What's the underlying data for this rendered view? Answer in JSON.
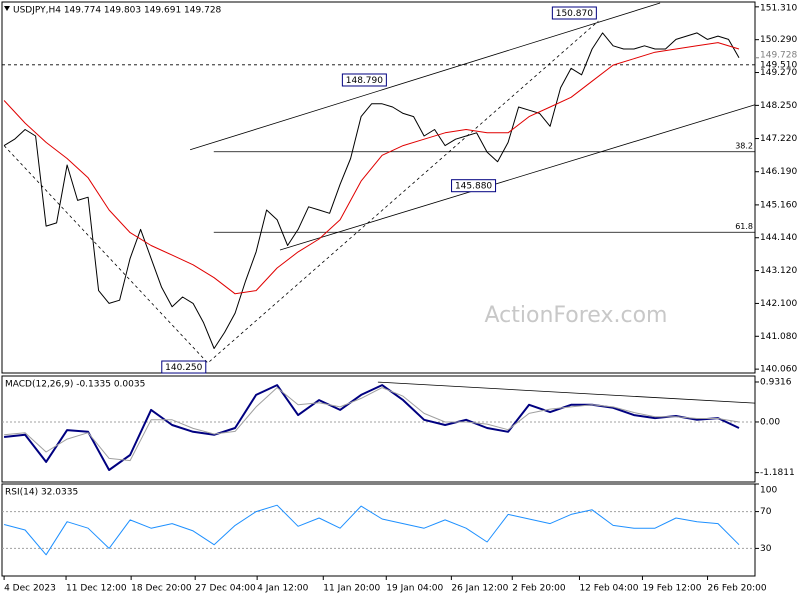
{
  "chart_data": [
    {
      "type": "line",
      "title": "USDJPY,H4  149.774 149.803 149.691 149.728",
      "watermark": "ActionForex.com",
      "xlim": [
        -1,
        357.6
      ],
      "ylim": [
        139.94,
        151.46
      ],
      "yticks": [
        {
          "value": 151.31,
          "label": "151.310"
        },
        {
          "value": 150.29,
          "label": "150.290"
        },
        {
          "value": 149.27,
          "label": "149.270"
        },
        {
          "value": 148.25,
          "label": "148.250"
        },
        {
          "value": 147.22,
          "label": "147.220"
        },
        {
          "value": 146.19,
          "label": "146.190"
        },
        {
          "value": 145.16,
          "label": "145.160"
        },
        {
          "value": 144.14,
          "label": "144.140"
        },
        {
          "value": 143.12,
          "label": "143.120"
        },
        {
          "value": 142.1,
          "label": "142.100"
        },
        {
          "value": 141.08,
          "label": "141.080"
        },
        {
          "value": 140.06,
          "label": "140.060"
        }
      ],
      "series": [
        {
          "color": "#000000",
          "width": 1,
          "x": [
            0,
            5,
            10,
            15,
            20,
            25,
            30,
            35,
            40,
            45,
            50,
            55,
            60,
            65,
            70,
            75,
            80,
            85,
            90,
            95,
            100,
            105,
            110,
            115,
            120,
            125,
            130,
            135,
            140,
            145,
            150,
            155,
            160,
            165,
            170,
            175,
            180,
            185,
            190,
            195,
            200,
            205,
            210,
            215,
            220,
            225,
            230,
            235,
            240,
            245,
            250,
            255,
            260,
            265,
            270,
            275,
            280,
            285,
            290,
            295,
            300,
            305,
            310,
            315,
            320,
            325,
            330,
            335,
            340,
            345,
            350
          ],
          "values": [
            147.0,
            147.2,
            147.5,
            147.3,
            144.5,
            144.6,
            146.4,
            145.3,
            145.4,
            142.5,
            142.1,
            142.2,
            143.5,
            144.4,
            143.5,
            142.6,
            142.0,
            142.3,
            142.1,
            141.5,
            140.7,
            141.2,
            141.8,
            142.8,
            143.7,
            145.0,
            144.7,
            143.9,
            144.4,
            145.1,
            145.0,
            144.9,
            145.8,
            146.6,
            147.9,
            148.3,
            148.3,
            148.2,
            148.0,
            147.9,
            147.3,
            147.5,
            147.0,
            147.2,
            147.3,
            147.4,
            146.8,
            146.5,
            147.1,
            148.2,
            148.1,
            148.0,
            147.6,
            148.8,
            149.4,
            149.2,
            150.0,
            150.5,
            150.1,
            150.0,
            150.0,
            150.1,
            150.0,
            150.0,
            150.3,
            150.4,
            150.5,
            150.3,
            150.4,
            150.3,
            149.73
          ]
        },
        {
          "color": "#e00000",
          "width": 1,
          "x": [
            0,
            10,
            20,
            30,
            40,
            50,
            60,
            70,
            80,
            90,
            100,
            110,
            120,
            130,
            140,
            150,
            160,
            170,
            180,
            190,
            200,
            210,
            220,
            230,
            240,
            250,
            260,
            270,
            280,
            290,
            300,
            310,
            320,
            330,
            340,
            350
          ],
          "values": [
            148.4,
            147.7,
            147.1,
            146.6,
            146.0,
            145.0,
            144.3,
            143.9,
            143.6,
            143.3,
            142.9,
            142.4,
            142.5,
            143.2,
            143.7,
            144.1,
            144.7,
            145.9,
            146.7,
            147.0,
            147.2,
            147.4,
            147.5,
            147.4,
            147.4,
            147.9,
            148.2,
            148.5,
            149.0,
            149.5,
            149.7,
            149.9,
            150.0,
            150.1,
            150.2,
            150.0
          ]
        }
      ],
      "trendlines": [
        {
          "dashed": false,
          "x": [
            88.6,
            312.4
          ],
          "values": [
            146.87,
            151.43
          ]
        },
        {
          "dashed": false,
          "x": [
            131.4,
            357.6
          ],
          "values": [
            143.76,
            148.27
          ]
        },
        {
          "dashed": true,
          "x": [
            0,
            97,
            283
          ],
          "values": [
            147.0,
            140.25,
            150.87
          ]
        }
      ],
      "fib_levels": [
        {
          "label": "38.2",
          "value": 146.81
        },
        {
          "label": "61.8",
          "value": 144.31
        }
      ],
      "annotations": [
        {
          "x": 97,
          "value": 140.25,
          "label": "140.250",
          "low": true
        },
        {
          "x": 183,
          "value": 148.79,
          "label": "148.790",
          "low": false
        },
        {
          "x": 283,
          "value": 150.87,
          "label": "150.870",
          "low": false
        },
        {
          "x": 235,
          "value": 145.88,
          "label": "145.880",
          "low": true
        }
      ],
      "price_line": {
        "value": 149.51,
        "label": "149.510"
      },
      "last_price": {
        "value": 149.728,
        "label": "149.728"
      }
    },
    {
      "type": "line",
      "title": "MACD(12,26,9) -0.1335 0.0035",
      "xlim": [
        -1,
        357.6
      ],
      "ylim": [
        -1.399,
        1.071
      ],
      "yticks": [
        0.9316,
        {
          "value": 0,
          "label": "0.00"
        },
        -1.1811
      ],
      "dotted_levels": [
        0
      ],
      "series": [
        {
          "color": "#000080",
          "width": 2,
          "x": [
            0,
            10,
            20,
            30,
            40,
            50,
            60,
            70,
            80,
            90,
            100,
            110,
            120,
            130,
            140,
            150,
            160,
            170,
            180,
            190,
            200,
            210,
            220,
            230,
            240,
            250,
            260,
            270,
            280,
            290,
            300,
            310,
            320,
            330,
            340,
            350
          ],
          "values": [
            -0.35,
            -0.3,
            -0.93,
            -0.19,
            -0.23,
            -1.12,
            -0.77,
            0.28,
            -0.07,
            -0.23,
            -0.3,
            -0.14,
            0.63,
            0.86,
            0.16,
            0.51,
            0.28,
            0.63,
            0.86,
            0.51,
            0.05,
            -0.07,
            0.05,
            -0.14,
            -0.23,
            0.4,
            0.23,
            0.4,
            0.4,
            0.33,
            0.16,
            0.09,
            0.14,
            0.05,
            0.09,
            -0.14
          ]
        },
        {
          "color": "#a0a0a0",
          "width": 1,
          "x": [
            0,
            10,
            20,
            30,
            40,
            50,
            60,
            70,
            80,
            90,
            100,
            110,
            120,
            130,
            140,
            150,
            160,
            170,
            180,
            190,
            200,
            210,
            220,
            230,
            240,
            250,
            260,
            270,
            280,
            290,
            300,
            310,
            320,
            330,
            340,
            350
          ],
          "values": [
            -0.3,
            -0.25,
            -0.7,
            -0.4,
            -0.25,
            -0.85,
            -0.9,
            0.05,
            0.05,
            -0.15,
            -0.28,
            -0.22,
            0.35,
            0.8,
            0.4,
            0.45,
            0.35,
            0.55,
            0.8,
            0.6,
            0.2,
            0.0,
            0.0,
            -0.05,
            -0.18,
            0.2,
            0.3,
            0.35,
            0.4,
            0.35,
            0.22,
            0.12,
            0.12,
            0.08,
            0.08,
            0.0
          ]
        }
      ],
      "trendlines": [
        {
          "dashed": false,
          "x": [
            178,
            357.6
          ],
          "values": [
            0.93,
            0.44
          ]
        }
      ]
    },
    {
      "type": "line",
      "title": "RSI(14) 32.0335",
      "xlim": [
        -1,
        357.6
      ],
      "ylim": [
        0,
        100
      ],
      "yticks": [
        100,
        70,
        30
      ],
      "dotted_levels": [
        70,
        30
      ],
      "series": [
        {
          "color": "#1e90ff",
          "width": 1,
          "x": [
            0,
            10,
            20,
            30,
            40,
            50,
            60,
            70,
            80,
            90,
            100,
            110,
            120,
            130,
            140,
            150,
            160,
            170,
            180,
            190,
            200,
            210,
            220,
            230,
            240,
            250,
            260,
            270,
            280,
            290,
            300,
            310,
            320,
            330,
            340,
            350
          ],
          "values": [
            56,
            50,
            23,
            59,
            52,
            30,
            61,
            52,
            57,
            49,
            34,
            55,
            70,
            77,
            54,
            63,
            52,
            76,
            62,
            57,
            52,
            61,
            52,
            37,
            67,
            62,
            57,
            67,
            72,
            55,
            52,
            52,
            63,
            59,
            57,
            34
          ]
        }
      ],
      "xticks": [
        {
          "value": 0,
          "label": "4 Dec 2023"
        },
        {
          "value": 29.5,
          "label": "11 Dec 12:00"
        },
        {
          "value": 60.5,
          "label": "18 Dec 20:00"
        },
        {
          "value": 91,
          "label": "27 Dec 04:00"
        },
        {
          "value": 120.5,
          "label": "4 Jan 12:00"
        },
        {
          "value": 152,
          "label": "11 Jan 20:00"
        },
        {
          "value": 182,
          "label": "19 Jan 04:00"
        },
        {
          "value": 213,
          "label": "26 Jan 12:00"
        },
        {
          "value": 242,
          "label": "2 Feb 20:00"
        },
        {
          "value": 274,
          "label": "12 Feb 04:00"
        },
        {
          "value": 304,
          "label": "19 Feb 12:00"
        },
        {
          "value": 335,
          "label": "26 Feb 20:00"
        }
      ]
    }
  ]
}
